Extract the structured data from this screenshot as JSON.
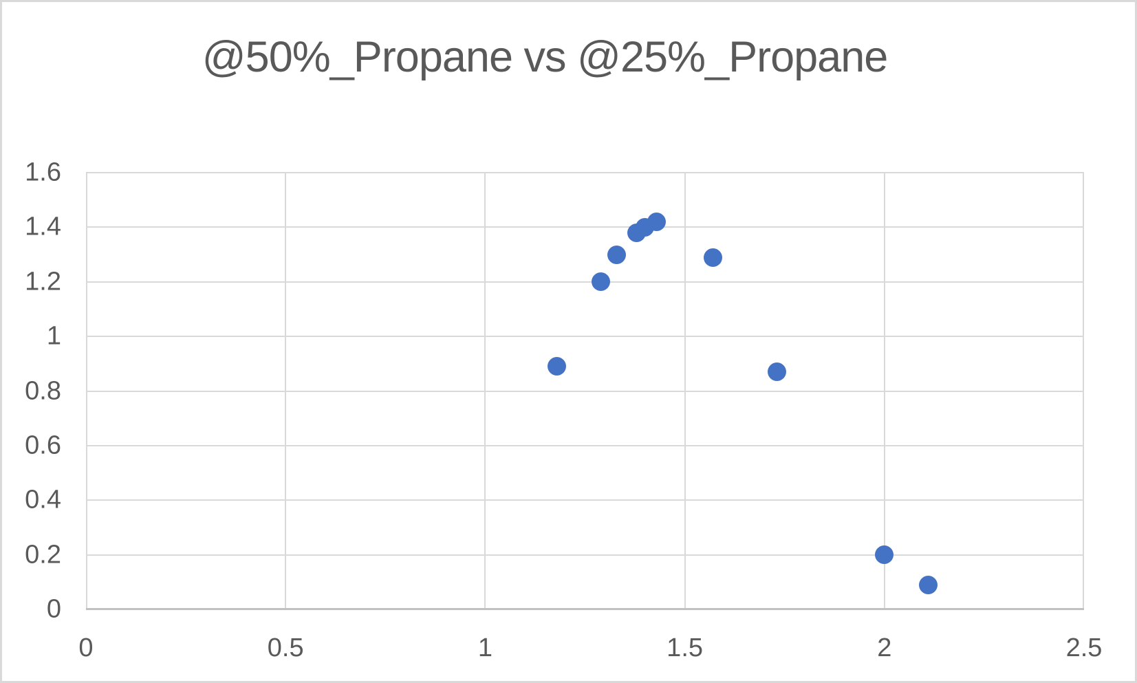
{
  "chart_data": {
    "type": "scatter",
    "title": "@50%_Propane vs @25%_Propane",
    "xlabel": "",
    "ylabel": "",
    "xlim": [
      0,
      2.5
    ],
    "ylim": [
      0,
      1.6
    ],
    "xticks": {
      "values": [
        0,
        0.5,
        1,
        1.5,
        2,
        2.5
      ],
      "labels": [
        "0",
        "0.5",
        "1",
        "1.5",
        "2",
        "2.5"
      ]
    },
    "yticks": {
      "values": [
        0,
        0.2,
        0.4,
        0.6,
        0.8,
        1,
        1.2,
        1.4,
        1.6
      ],
      "labels": [
        "0",
        "0.2",
        "0.4",
        "0.6",
        "0.8",
        "1",
        "1.2",
        "1.4",
        "1.6"
      ]
    },
    "grid": true,
    "legend": "none",
    "series": [
      {
        "name": "@50%_Propane vs @25%_Propane",
        "marker": "circle",
        "points": [
          [
            1.18,
            0.89
          ],
          [
            1.29,
            1.2
          ],
          [
            1.33,
            1.3
          ],
          [
            1.38,
            1.38
          ],
          [
            1.4,
            1.4
          ],
          [
            1.43,
            1.42
          ],
          [
            1.57,
            1.29
          ],
          [
            1.73,
            0.87
          ],
          [
            2.0,
            0.2
          ],
          [
            2.11,
            0.09
          ]
        ]
      }
    ],
    "colors": {
      "marker": "#4472C4",
      "gridline": "#D9D9D9",
      "axis_line": "#C1C1C1",
      "text": "#595959",
      "background": "#FFFFFF",
      "frame_border": "#D9D9D9"
    }
  }
}
